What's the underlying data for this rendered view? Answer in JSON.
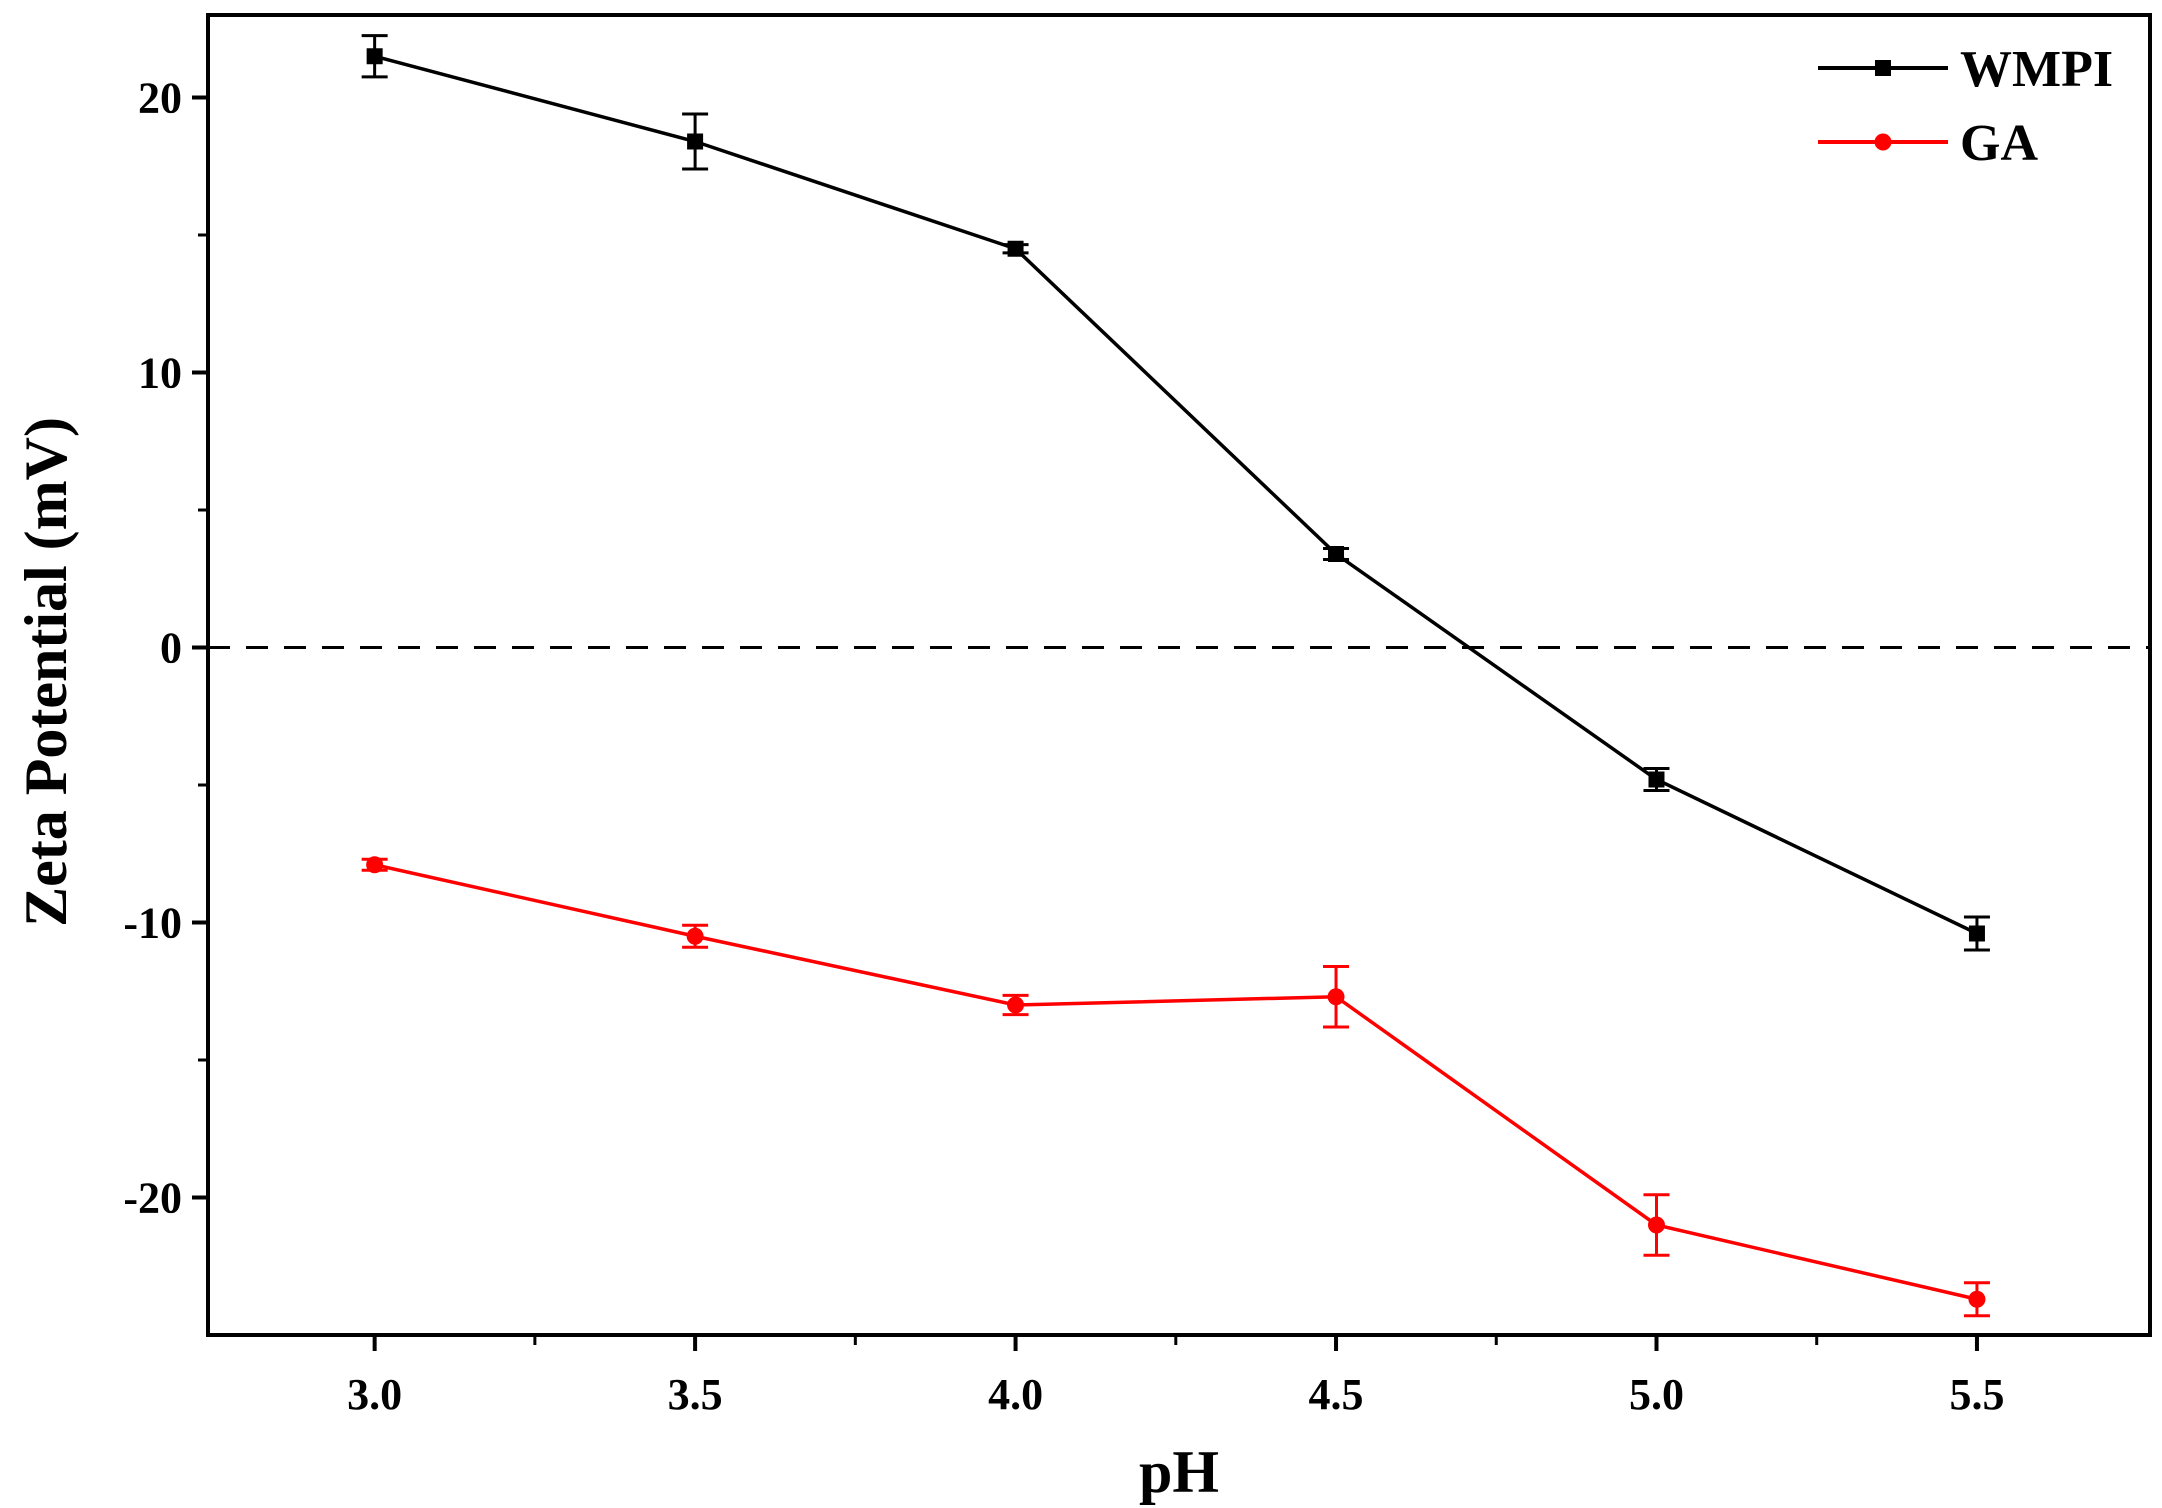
{
  "chart_data": {
    "type": "line",
    "title": "",
    "xlabel": "pH",
    "ylabel": "Zeta Potential (mV)",
    "x": [
      3.0,
      3.5,
      4.0,
      4.5,
      5.0,
      5.5
    ],
    "x_tick_labels": [
      "3.0",
      "3.5",
      "4.0",
      "4.5",
      "5.0",
      "5.5"
    ],
    "xlim": [
      2.74,
      5.77
    ],
    "ylim": [
      -25,
      23
    ],
    "y_ticks_major": [
      20,
      10,
      0,
      -10,
      -20
    ],
    "y_tick_labels": [
      "20",
      "10",
      "0",
      "-10",
      "-20"
    ],
    "y_ticks_minor": [
      15,
      5,
      -5,
      -15
    ],
    "grid": false,
    "legend_position": "top-right",
    "reference_line": {
      "y": 0,
      "style": "dashed",
      "color": "#000000"
    },
    "series": [
      {
        "name": "WMPI",
        "color": "#000000",
        "marker": "square",
        "values": [
          21.5,
          18.4,
          14.5,
          3.4,
          -4.8,
          -10.4
        ],
        "errors": [
          0.75,
          1.0,
          0.15,
          0.2,
          0.4,
          0.6
        ]
      },
      {
        "name": "GA",
        "color": "#ff0000",
        "marker": "circle",
        "values": [
          -7.9,
          -10.5,
          -13.0,
          -12.7,
          -21.0,
          -23.7
        ],
        "errors": [
          0.2,
          0.4,
          0.35,
          1.1,
          1.1,
          0.6
        ]
      }
    ]
  }
}
